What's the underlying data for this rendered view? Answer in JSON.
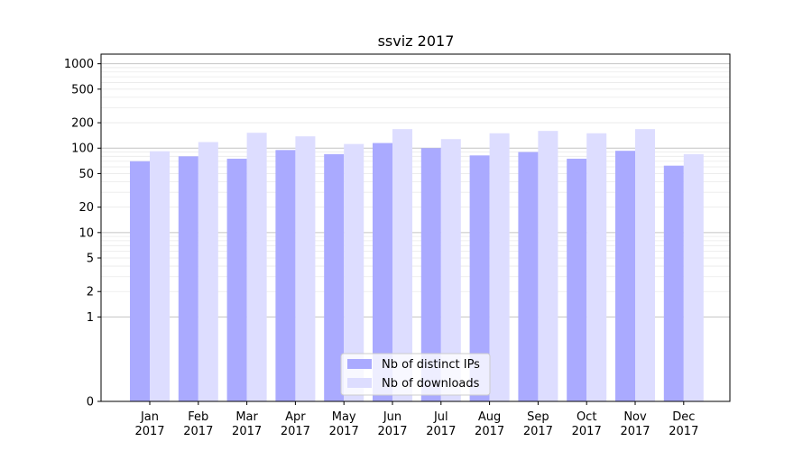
{
  "chart_data": {
    "type": "bar",
    "title": "ssviz 2017",
    "xlabel": "",
    "ylabel": "",
    "y_scale": "symlog",
    "categories": [
      [
        "Jan",
        "2017"
      ],
      [
        "Feb",
        "2017"
      ],
      [
        "Mar",
        "2017"
      ],
      [
        "Apr",
        "2017"
      ],
      [
        "May",
        "2017"
      ],
      [
        "Jun",
        "2017"
      ],
      [
        "Jul",
        "2017"
      ],
      [
        "Aug",
        "2017"
      ],
      [
        "Sep",
        "2017"
      ],
      [
        "Oct",
        "2017"
      ],
      [
        "Nov",
        "2017"
      ],
      [
        "Dec",
        "2017"
      ]
    ],
    "series": [
      {
        "name": "Nb of distinct IPs",
        "color": "#aaaaff",
        "values": [
          70,
          80,
          75,
          95,
          85,
          115,
          100,
          82,
          90,
          75,
          93,
          62
        ]
      },
      {
        "name": "Nb of downloads",
        "color": "#ddddff",
        "values": [
          92,
          118,
          152,
          138,
          112,
          168,
          128,
          150,
          160,
          150,
          168,
          85
        ]
      }
    ],
    "y_ticks": [
      0,
      1,
      2,
      5,
      10,
      20,
      50,
      100,
      200,
      500,
      1000
    ],
    "ylim": [
      0,
      1300
    ],
    "grid": true,
    "legend_position": "bottom-center"
  }
}
